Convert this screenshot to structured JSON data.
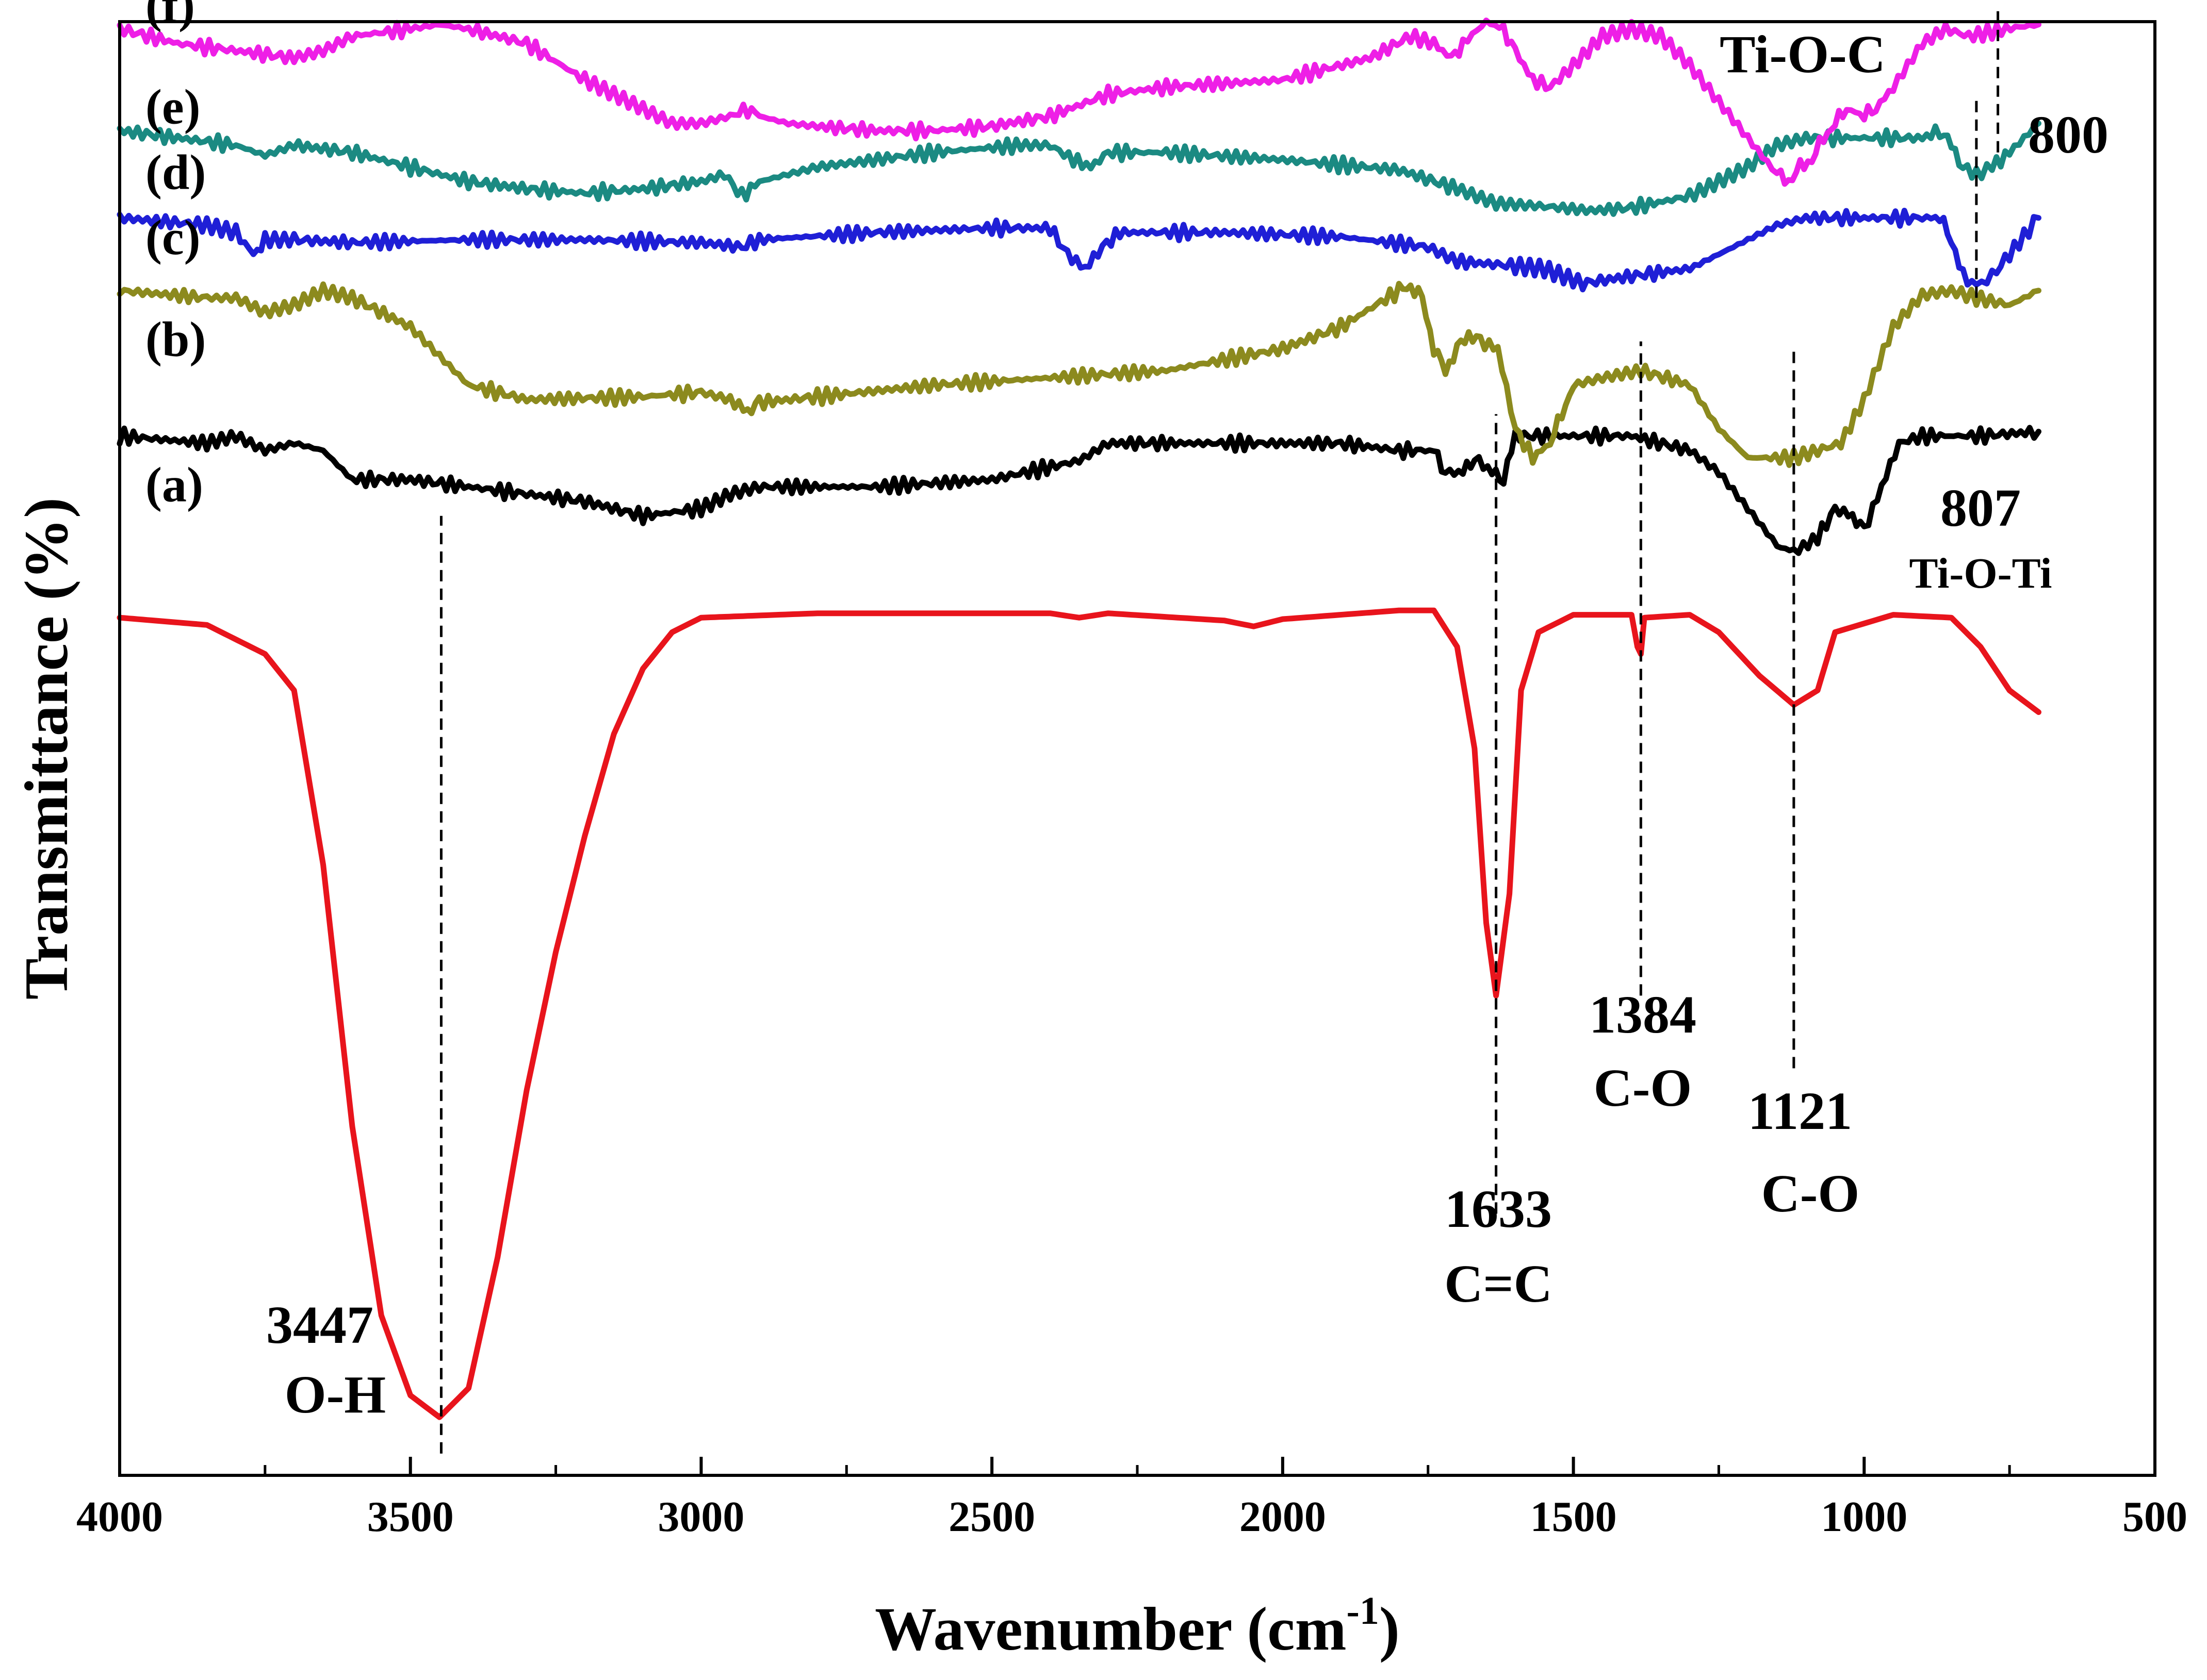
{
  "chart_data": {
    "type": "line",
    "title": "",
    "xlabel": "Wavenumber (cm",
    "xlabel_sup": "-1",
    "xlabel_close": ")",
    "ylabel": "Transmittance (%)",
    "xlim": [
      4000,
      500
    ],
    "ylim": [
      0,
      100
    ],
    "xticks": [
      "4000",
      "3500",
      "3000",
      "2500",
      "2000",
      "1500",
      "1000",
      "500"
    ],
    "series": [
      {
        "name": "(a)",
        "color": "#e8141c",
        "points": [
          [
            4000,
            59.0
          ],
          [
            3850,
            58.5
          ],
          [
            3750,
            56.5
          ],
          [
            3700,
            54.0
          ],
          [
            3650,
            42.0
          ],
          [
            3600,
            24.0
          ],
          [
            3550,
            11.0
          ],
          [
            3500,
            5.5
          ],
          [
            3450,
            4.0
          ],
          [
            3400,
            6.0
          ],
          [
            3350,
            15.0
          ],
          [
            3300,
            26.5
          ],
          [
            3250,
            36.0
          ],
          [
            3200,
            44.0
          ],
          [
            3150,
            51.0
          ],
          [
            3100,
            55.5
          ],
          [
            3050,
            58.0
          ],
          [
            3000,
            59.0
          ],
          [
            2800,
            59.3
          ],
          [
            2400,
            59.3
          ],
          [
            2350,
            59.0
          ],
          [
            2300,
            59.3
          ],
          [
            2100,
            58.8
          ],
          [
            2050,
            58.4
          ],
          [
            2000,
            58.9
          ],
          [
            1800,
            59.5
          ],
          [
            1740,
            59.5
          ],
          [
            1700,
            57.0
          ],
          [
            1670,
            50.0
          ],
          [
            1650,
            38.0
          ],
          [
            1633,
            33.0
          ],
          [
            1610,
            40.0
          ],
          [
            1590,
            54.0
          ],
          [
            1560,
            58.0
          ],
          [
            1500,
            59.2
          ],
          [
            1400,
            59.2
          ],
          [
            1390,
            57.0
          ],
          [
            1384,
            56.5
          ],
          [
            1378,
            59.0
          ],
          [
            1300,
            59.2
          ],
          [
            1250,
            58.0
          ],
          [
            1180,
            55.0
          ],
          [
            1121,
            53.0
          ],
          [
            1080,
            54.0
          ],
          [
            1050,
            58.0
          ],
          [
            950,
            59.2
          ],
          [
            850,
            59.0
          ],
          [
            800,
            57.0
          ],
          [
            750,
            54.0
          ],
          [
            700,
            52.5
          ]
        ]
      },
      {
        "name": "(b)",
        "color": "#000000",
        "points": [
          [
            4000,
            71.5
          ],
          [
            3850,
            71.0
          ],
          [
            3800,
            71.5
          ],
          [
            3750,
            70.5
          ],
          [
            3700,
            71.0
          ],
          [
            3650,
            70.5
          ],
          [
            3600,
            68.5
          ],
          [
            3500,
            68.5
          ],
          [
            3400,
            68.0
          ],
          [
            3300,
            67.5
          ],
          [
            3200,
            67.0
          ],
          [
            3100,
            66.0
          ],
          [
            3000,
            66.5
          ],
          [
            2950,
            67.5
          ],
          [
            2900,
            68.0
          ],
          [
            2700,
            68.0
          ],
          [
            2500,
            68.5
          ],
          [
            2350,
            69.8
          ],
          [
            2300,
            71.0
          ],
          [
            2200,
            71.0
          ],
          [
            1900,
            71.0
          ],
          [
            1800,
            70.5
          ],
          [
            1740,
            70.5
          ],
          [
            1720,
            69.0
          ],
          [
            1690,
            69.0
          ],
          [
            1670,
            70.0
          ],
          [
            1640,
            69.0
          ],
          [
            1620,
            68.5
          ],
          [
            1600,
            71.5
          ],
          [
            1500,
            71.5
          ],
          [
            1400,
            71.5
          ],
          [
            1300,
            70.5
          ],
          [
            1250,
            69.0
          ],
          [
            1200,
            66.5
          ],
          [
            1150,
            64.0
          ],
          [
            1121,
            63.5
          ],
          [
            1080,
            64.5
          ],
          [
            1050,
            66.5
          ],
          [
            1020,
            66.0
          ],
          [
            1000,
            65.0
          ],
          [
            970,
            68.0
          ],
          [
            940,
            71.0
          ],
          [
            900,
            71.5
          ],
          [
            800,
            71.5
          ],
          [
            700,
            71.8
          ]
        ]
      },
      {
        "name": "(c)",
        "color": "#8c8a1e",
        "points": [
          [
            4000,
            81.5
          ],
          [
            3850,
            81.0
          ],
          [
            3800,
            81.0
          ],
          [
            3750,
            80.0
          ],
          [
            3700,
            80.5
          ],
          [
            3650,
            81.5
          ],
          [
            3600,
            81.0
          ],
          [
            3500,
            79.0
          ],
          [
            3450,
            77.0
          ],
          [
            3400,
            75.0
          ],
          [
            3300,
            74.0
          ],
          [
            3100,
            74.2
          ],
          [
            3000,
            74.5
          ],
          [
            2950,
            74.0
          ],
          [
            2920,
            73.2
          ],
          [
            2900,
            73.8
          ],
          [
            2800,
            74.2
          ],
          [
            2600,
            75.0
          ],
          [
            2400,
            75.5
          ],
          [
            2200,
            76.0
          ],
          [
            2000,
            77.5
          ],
          [
            1900,
            79.0
          ],
          [
            1800,
            81.5
          ],
          [
            1780,
            81.8
          ],
          [
            1760,
            81.0
          ],
          [
            1740,
            77.5
          ],
          [
            1720,
            76.0
          ],
          [
            1700,
            77.5
          ],
          [
            1680,
            78.5
          ],
          [
            1660,
            78.0
          ],
          [
            1630,
            77.5
          ],
          [
            1600,
            72.0
          ],
          [
            1570,
            70.0
          ],
          [
            1540,
            71.0
          ],
          [
            1520,
            73.0
          ],
          [
            1500,
            75.0
          ],
          [
            1450,
            75.5
          ],
          [
            1384,
            76.0
          ],
          [
            1300,
            75.0
          ],
          [
            1250,
            72.0
          ],
          [
            1200,
            70.0
          ],
          [
            1121,
            70.0
          ],
          [
            1080,
            70.5
          ],
          [
            1040,
            71.0
          ],
          [
            1000,
            74.0
          ],
          [
            950,
            79.0
          ],
          [
            900,
            81.2
          ],
          [
            850,
            81.5
          ],
          [
            807,
            81.0
          ],
          [
            750,
            80.5
          ],
          [
            700,
            81.5
          ]
        ]
      },
      {
        "name": "(d)",
        "color": "#1f1fd6",
        "points": [
          [
            4000,
            86.5
          ],
          [
            3850,
            86.0
          ],
          [
            3800,
            85.5
          ],
          [
            3770,
            84.0
          ],
          [
            3750,
            85.0
          ],
          [
            3700,
            85.0
          ],
          [
            3600,
            84.8
          ],
          [
            3400,
            85.0
          ],
          [
            3200,
            85.0
          ],
          [
            3000,
            84.8
          ],
          [
            2930,
            84.5
          ],
          [
            2900,
            85.0
          ],
          [
            2700,
            85.5
          ],
          [
            2500,
            85.8
          ],
          [
            2400,
            85.8
          ],
          [
            2370,
            84.0
          ],
          [
            2340,
            83.0
          ],
          [
            2310,
            84.5
          ],
          [
            2280,
            85.5
          ],
          [
            2100,
            85.5
          ],
          [
            1900,
            85.2
          ],
          [
            1750,
            84.5
          ],
          [
            1700,
            83.5
          ],
          [
            1600,
            83.2
          ],
          [
            1550,
            83.0
          ],
          [
            1484,
            82.0
          ],
          [
            1400,
            82.5
          ],
          [
            1300,
            83.0
          ],
          [
            1250,
            84.0
          ],
          [
            1200,
            85.0
          ],
          [
            1150,
            86.0
          ],
          [
            1100,
            86.5
          ],
          [
            1000,
            86.5
          ],
          [
            900,
            86.5
          ],
          [
            870,
            86.5
          ],
          [
            850,
            85.0
          ],
          [
            830,
            82.5
          ],
          [
            807,
            81.8
          ],
          [
            780,
            82.5
          ],
          [
            750,
            84.0
          ],
          [
            700,
            86.5
          ]
        ]
      },
      {
        "name": "(e)",
        "color": "#1b8a82",
        "points": [
          [
            4000,
            92.5
          ],
          [
            3900,
            92.0
          ],
          [
            3800,
            91.5
          ],
          [
            3750,
            90.8
          ],
          [
            3700,
            91.5
          ],
          [
            3600,
            91.0
          ],
          [
            3500,
            90.0
          ],
          [
            3400,
            89.0
          ],
          [
            3300,
            88.5
          ],
          [
            3200,
            88.2
          ],
          [
            3100,
            88.5
          ],
          [
            3000,
            89.0
          ],
          [
            2960,
            89.5
          ],
          [
            2930,
            88.0
          ],
          [
            2900,
            89.0
          ],
          [
            2850,
            89.5
          ],
          [
            2800,
            90.0
          ],
          [
            2600,
            91.0
          ],
          [
            2450,
            91.5
          ],
          [
            2400,
            91.5
          ],
          [
            2360,
            90.5
          ],
          [
            2330,
            90.0
          ],
          [
            2300,
            91.0
          ],
          [
            2200,
            91.0
          ],
          [
            2000,
            90.5
          ],
          [
            1800,
            89.8
          ],
          [
            1700,
            88.5
          ],
          [
            1633,
            87.5
          ],
          [
            1550,
            87.3
          ],
          [
            1470,
            87.0
          ],
          [
            1400,
            87.2
          ],
          [
            1300,
            88.0
          ],
          [
            1250,
            89.0
          ],
          [
            1200,
            90.0
          ],
          [
            1150,
            91.5
          ],
          [
            1100,
            92.0
          ],
          [
            1000,
            92.0
          ],
          [
            900,
            92.0
          ],
          [
            870,
            92.5
          ],
          [
            850,
            91.5
          ],
          [
            830,
            90.0
          ],
          [
            807,
            89.5
          ],
          [
            780,
            90.0
          ],
          [
            750,
            91.0
          ],
          [
            700,
            93.0
          ]
        ]
      },
      {
        "name": "(f)",
        "color": "#ee1fe6",
        "points": [
          [
            4000,
            99.5
          ],
          [
            3900,
            98.5
          ],
          [
            3800,
            98.0
          ],
          [
            3700,
            97.5
          ],
          [
            3650,
            98.0
          ],
          [
            3600,
            99.0
          ],
          [
            3500,
            99.5
          ],
          [
            3450,
            99.8
          ],
          [
            3400,
            99.5
          ],
          [
            3300,
            98.5
          ],
          [
            3200,
            96.0
          ],
          [
            3150,
            95.0
          ],
          [
            3100,
            94.0
          ],
          [
            3050,
            93.0
          ],
          [
            3000,
            93.0
          ],
          [
            2950,
            93.5
          ],
          [
            2920,
            94.0
          ],
          [
            2900,
            93.5
          ],
          [
            2850,
            93.0
          ],
          [
            2800,
            92.8
          ],
          [
            2700,
            92.5
          ],
          [
            2600,
            92.5
          ],
          [
            2500,
            92.8
          ],
          [
            2400,
            93.5
          ],
          [
            2300,
            95.0
          ],
          [
            2200,
            95.5
          ],
          [
            2000,
            96.0
          ],
          [
            1850,
            97.5
          ],
          [
            1780,
            99.0
          ],
          [
            1740,
            98.5
          ],
          [
            1710,
            97.5
          ],
          [
            1690,
            98.5
          ],
          [
            1650,
            100.0
          ],
          [
            1620,
            99.5
          ],
          [
            1600,
            98.0
          ],
          [
            1570,
            96.0
          ],
          [
            1540,
            95.5
          ],
          [
            1500,
            97.0
          ],
          [
            1450,
            99.0
          ],
          [
            1400,
            99.5
          ],
          [
            1350,
            99.0
          ],
          [
            1300,
            97.0
          ],
          [
            1250,
            94.5
          ],
          [
            1200,
            92.0
          ],
          [
            1150,
            89.5
          ],
          [
            1130,
            89.0
          ],
          [
            1110,
            90.0
          ],
          [
            1090,
            90.5
          ],
          [
            1070,
            92.0
          ],
          [
            1050,
            93.0
          ],
          [
            1030,
            94.0
          ],
          [
            1000,
            93.5
          ],
          [
            980,
            94.0
          ],
          [
            950,
            95.5
          ],
          [
            900,
            98.5
          ],
          [
            860,
            99.5
          ],
          [
            820,
            99.0
          ],
          [
            780,
            99.3
          ],
          [
            740,
            99.6
          ],
          [
            700,
            99.8
          ]
        ]
      }
    ],
    "series_tag_y": [
      67.0,
      77.0,
      84.0,
      88.5,
      93.0,
      100.0
    ],
    "annotations": [
      {
        "lines": [
          "3447",
          "O-H"
        ],
        "x": 3447,
        "line_from": 1.5,
        "line_to": 66.0
      },
      {
        "lines": [
          "1633",
          "C=C"
        ],
        "x": 1633,
        "line_from": 18.0,
        "line_to": 73.0
      },
      {
        "lines": [
          "1384",
          "C-O"
        ],
        "x": 1384,
        "line_from": 33.0,
        "line_to": 78.0
      },
      {
        "lines": [
          "1121",
          "C-O"
        ],
        "x": 1121,
        "line_from": 28.0,
        "line_to": 77.5
      },
      {
        "lines": [
          "807",
          "Ti-O-Ti"
        ],
        "x": 807,
        "line_from": 81.0,
        "line_to": 95.0
      },
      {
        "lines": [
          "Ti-O-C",
          "800"
        ],
        "x": 770,
        "line_from": 91.0,
        "line_to": 101.0
      }
    ]
  }
}
